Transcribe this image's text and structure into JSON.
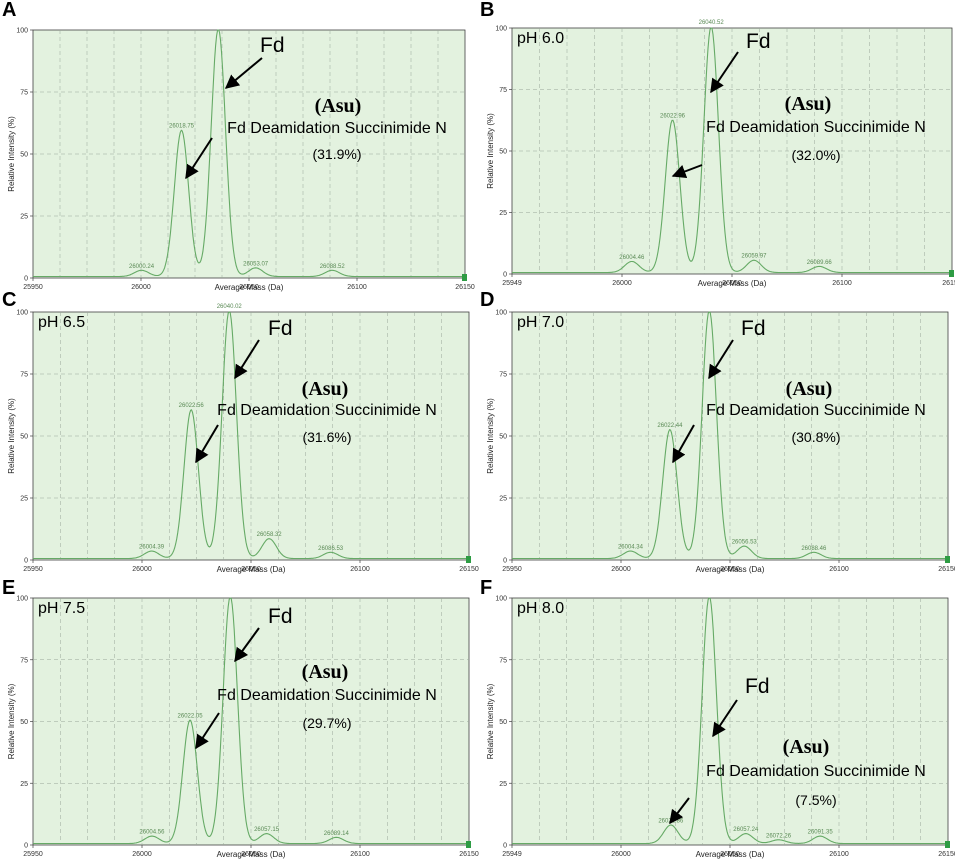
{
  "chart_data": [
    {
      "panel": "A",
      "condition": "",
      "type": "line",
      "xlabel": "Average Mass (Da)",
      "ylabel": "Relative Intensity (%)",
      "xlim": [
        25950,
        26150
      ],
      "ylim": [
        0,
        100
      ],
      "x_ticks": [
        "25950",
        "26000",
        "26050",
        "26100",
        "26150"
      ],
      "y_ticks": [
        "0",
        "25",
        "50",
        "75",
        "100"
      ],
      "peaks": [
        {
          "mass": 26000.24,
          "intensity": 2.5,
          "label": "26000.24"
        },
        {
          "mass": 26018.75,
          "intensity": 59,
          "label": "26018.75"
        },
        {
          "mass": 26035.8,
          "intensity": 100,
          "label": ""
        },
        {
          "mass": 26053.07,
          "intensity": 3.5,
          "label": "26053.07"
        },
        {
          "mass": 26088.52,
          "intensity": 2.5,
          "label": "26088.52"
        }
      ],
      "annotations": {
        "fd": "Fd",
        "asu": "(Asu)",
        "asu_desc": "Fd Deamidation Succinimide N",
        "percent": "(31.9%)"
      }
    },
    {
      "panel": "B",
      "condition": "pH 6.0",
      "type": "line",
      "xlabel": "Average Mass (Da)",
      "ylabel": "Relative Intensity (%)",
      "xlim": [
        25950,
        26150
      ],
      "ylim": [
        0,
        100
      ],
      "x_ticks": [
        "25949",
        "26000",
        "26050",
        "26100",
        "26151"
      ],
      "y_ticks": [
        "0",
        "25",
        "50",
        "75",
        "100"
      ],
      "peaks": [
        {
          "mass": 26004.46,
          "intensity": 4.5,
          "label": "26004.46"
        },
        {
          "mass": 26022.96,
          "intensity": 62,
          "label": "26022.96"
        },
        {
          "mass": 26040.52,
          "intensity": 100,
          "label": "26040.52"
        },
        {
          "mass": 26059.97,
          "intensity": 5,
          "label": "26059.97"
        },
        {
          "mass": 26089.66,
          "intensity": 2.5,
          "label": "26089.66"
        }
      ],
      "annotations": {
        "fd": "Fd",
        "asu": "(Asu)",
        "asu_desc": "Fd Deamidation Succinimide N",
        "percent": "(32.0%)"
      }
    },
    {
      "panel": "C",
      "condition": "pH 6.5",
      "type": "line",
      "xlabel": "Average Mass (Da)",
      "ylabel": "Relative Intensity (%)",
      "xlim": [
        25950,
        26150
      ],
      "ylim": [
        0,
        100
      ],
      "x_ticks": [
        "25950",
        "26000",
        "26050",
        "26100",
        "26150"
      ],
      "y_ticks": [
        "0",
        "25",
        "50",
        "75",
        "100"
      ],
      "peaks": [
        {
          "mass": 26004.39,
          "intensity": 3,
          "label": "26004.39"
        },
        {
          "mass": 26022.56,
          "intensity": 60,
          "label": "26022.56"
        },
        {
          "mass": 26040.02,
          "intensity": 100,
          "label": "26040.02"
        },
        {
          "mass": 26058.32,
          "intensity": 8,
          "label": "26058.32"
        },
        {
          "mass": 26086.53,
          "intensity": 2.5,
          "label": "26086.53"
        }
      ],
      "annotations": {
        "fd": "Fd",
        "asu": "(Asu)",
        "asu_desc": "Fd Deamidation Succinimide N",
        "percent": "(31.6%)"
      }
    },
    {
      "panel": "D",
      "condition": "pH 7.0",
      "type": "line",
      "xlabel": "Average Mass (Da)",
      "ylabel": "Relative Intensity (%)",
      "xlim": [
        25950,
        26150
      ],
      "ylim": [
        0,
        100
      ],
      "x_ticks": [
        "25950",
        "26000",
        "26050",
        "26100",
        "26150"
      ],
      "y_ticks": [
        "0",
        "25",
        "50",
        "75",
        "100"
      ],
      "peaks": [
        {
          "mass": 26004.34,
          "intensity": 3,
          "label": "26004.34"
        },
        {
          "mass": 26022.44,
          "intensity": 52,
          "label": "26022.44"
        },
        {
          "mass": 26040.5,
          "intensity": 100,
          "label": ""
        },
        {
          "mass": 26056.53,
          "intensity": 5,
          "label": "26056.53"
        },
        {
          "mass": 26088.46,
          "intensity": 2.5,
          "label": "26088.46"
        }
      ],
      "annotations": {
        "fd": "Fd",
        "asu": "(Asu)",
        "asu_desc": "Fd Deamidation Succinimide N",
        "percent": "(30.8%)"
      }
    },
    {
      "panel": "E",
      "condition": "pH 7.5",
      "type": "line",
      "xlabel": "Average Mass (Da)",
      "ylabel": "Relative Intensity (%)",
      "xlim": [
        25950,
        26150
      ],
      "ylim": [
        0,
        100
      ],
      "x_ticks": [
        "25950",
        "26000",
        "26050",
        "26100",
        "26150"
      ],
      "y_ticks": [
        "0",
        "25",
        "50",
        "75",
        "100"
      ],
      "peaks": [
        {
          "mass": 26004.56,
          "intensity": 3,
          "label": "26004.56"
        },
        {
          "mass": 26022.05,
          "intensity": 50,
          "label": "26022.05"
        },
        {
          "mass": 26040.5,
          "intensity": 100,
          "label": ""
        },
        {
          "mass": 26057.15,
          "intensity": 4,
          "label": "26057.15"
        },
        {
          "mass": 26089.14,
          "intensity": 2.5,
          "label": "26089.14"
        }
      ],
      "annotations": {
        "fd": "Fd",
        "asu": "(Asu)",
        "asu_desc": "Fd Deamidation Succinimide N",
        "percent": "(29.7%)"
      }
    },
    {
      "panel": "F",
      "condition": "pH 8.0",
      "type": "line",
      "xlabel": "Average Mass (Da)",
      "ylabel": "Relative Intensity (%)",
      "xlim": [
        25950,
        26150
      ],
      "ylim": [
        0,
        100
      ],
      "x_ticks": [
        "25949",
        "26000",
        "26050",
        "26100",
        "26150"
      ],
      "y_ticks": [
        "0",
        "25",
        "50",
        "75",
        "100"
      ],
      "peaks": [
        {
          "mass": 26022.86,
          "intensity": 7.5,
          "label": "26022.86"
        },
        {
          "mass": 26040.5,
          "intensity": 100,
          "label": ""
        },
        {
          "mass": 26057.24,
          "intensity": 4,
          "label": "26057.24"
        },
        {
          "mass": 26072.26,
          "intensity": 1.5,
          "label": "26072.26"
        },
        {
          "mass": 26091.35,
          "intensity": 3,
          "label": "26091.35"
        }
      ],
      "annotations": {
        "fd": "Fd",
        "asu": "(Asu)",
        "asu_desc": "Fd Deamidation Succinimide N",
        "percent": "(7.5%)"
      }
    }
  ],
  "colors": {
    "plot_bg": "#e3f2df",
    "grid": "#9aa79a",
    "trace": "#66aa66",
    "axis": "#404040",
    "arrow": "#000000"
  }
}
